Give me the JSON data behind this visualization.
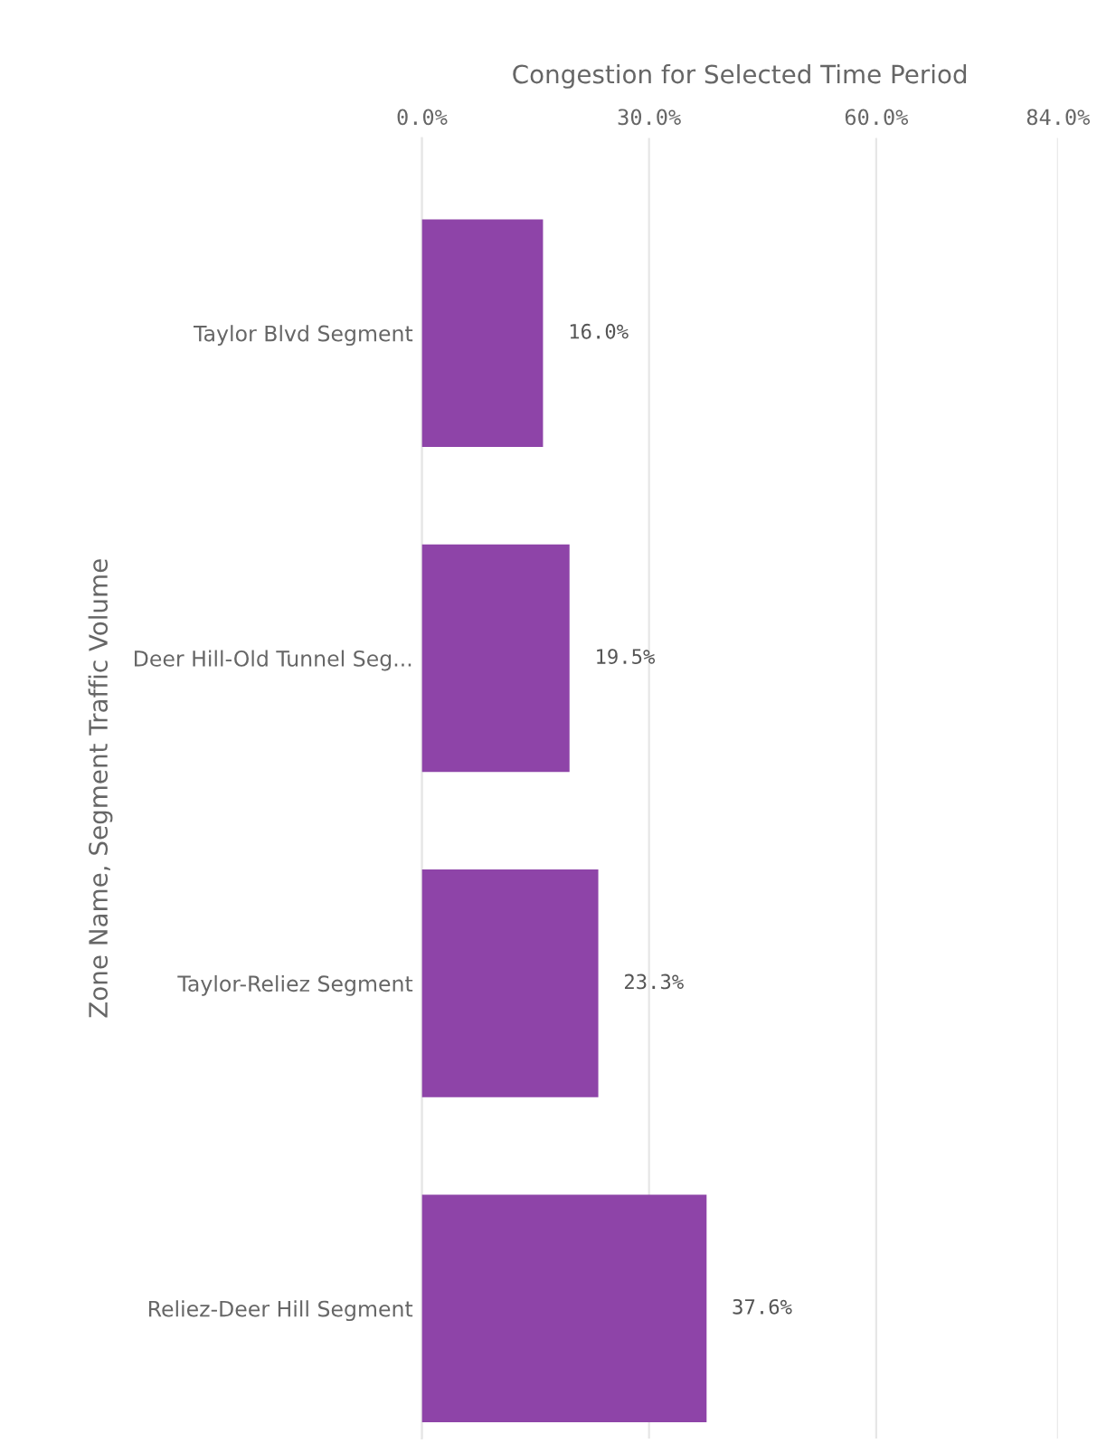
{
  "chart_data": {
    "type": "bar",
    "orientation": "horizontal",
    "xlabel": "Congestion for Selected Time Period",
    "ylabel": "Zone Name, Segment Traffic Volume",
    "categories": [
      "Taylor Blvd Segment",
      "Deer Hill-Old Tunnel Seg...",
      "Taylor-Reliez Segment",
      "Reliez-Deer Hill Segment"
    ],
    "values": [
      16.0,
      19.5,
      23.3,
      37.6
    ],
    "value_labels": [
      "16.0%",
      "19.5%",
      "23.3%",
      "37.6%"
    ],
    "color": "#8e44a8",
    "xlim": [
      0,
      84
    ],
    "xticks": [
      {
        "value": 0,
        "label": "0.0%"
      },
      {
        "value": 30,
        "label": "30.0%"
      },
      {
        "value": 60,
        "label": "60.0%"
      },
      {
        "value": 84,
        "label": "84.0%"
      }
    ],
    "grid": "x"
  }
}
